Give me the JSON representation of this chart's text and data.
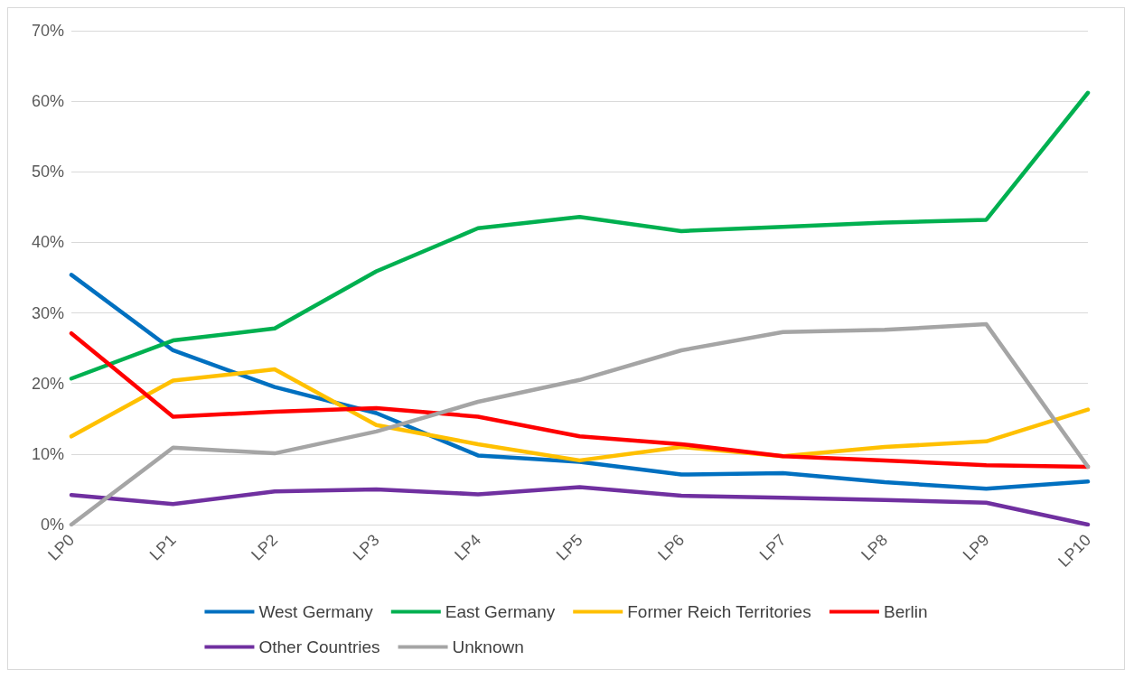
{
  "chart_data": {
    "type": "line",
    "categories": [
      "LP0",
      "LP1",
      "LP2",
      "LP3",
      "LP4",
      "LP5",
      "LP6",
      "LP7",
      "LP8",
      "LP9",
      "LP10"
    ],
    "series": [
      {
        "name": "West Germany",
        "color": "#0070c0",
        "values": [
          0.354,
          0.247,
          0.195,
          0.158,
          0.098,
          0.089,
          0.071,
          0.073,
          0.06,
          0.051,
          0.061
        ]
      },
      {
        "name": "East Germany",
        "color": "#00b050",
        "values": [
          0.207,
          0.261,
          0.278,
          0.359,
          0.42,
          0.436,
          0.416,
          0.422,
          0.428,
          0.432,
          0.612
        ]
      },
      {
        "name": "Former Reich Territories",
        "color": "#ffc000",
        "values": [
          0.125,
          0.204,
          0.22,
          0.141,
          0.114,
          0.091,
          0.11,
          0.097,
          0.11,
          0.118,
          0.163
        ]
      },
      {
        "name": "Berlin",
        "color": "#ff0000",
        "values": [
          0.271,
          0.153,
          0.16,
          0.165,
          0.153,
          0.125,
          0.114,
          0.097,
          0.091,
          0.084,
          0.082
        ]
      },
      {
        "name": "Other Countries",
        "color": "#7030a0",
        "values": [
          0.042,
          0.029,
          0.047,
          0.05,
          0.043,
          0.053,
          0.041,
          0.038,
          0.035,
          0.031,
          0.0
        ]
      },
      {
        "name": "Unknown",
        "color": "#a5a5a5",
        "values": [
          0.0,
          0.109,
          0.101,
          0.132,
          0.174,
          0.205,
          0.247,
          0.273,
          0.276,
          0.284,
          0.082
        ]
      }
    ],
    "ylim": [
      0,
      0.7
    ],
    "yticks": [
      {
        "value": 0,
        "label": "0%"
      },
      {
        "value": 0.1,
        "label": "10%"
      },
      {
        "value": 0.2,
        "label": "20%"
      },
      {
        "value": 0.3,
        "label": "30%"
      },
      {
        "value": 0.4,
        "label": "40%"
      },
      {
        "value": 0.5,
        "label": "50%"
      },
      {
        "value": 0.6,
        "label": "60%"
      },
      {
        "value": 0.7,
        "label": "70%"
      }
    ],
    "grid": "y",
    "legend": "bottom",
    "marker": "none",
    "line_style": "solid"
  }
}
